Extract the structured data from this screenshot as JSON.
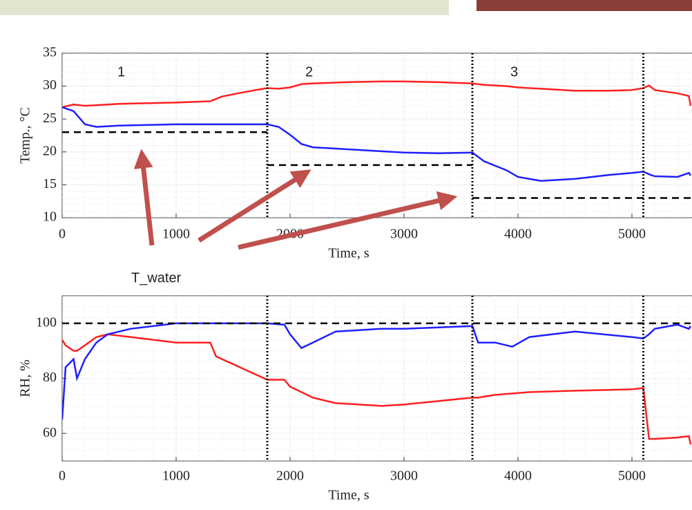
{
  "chart_data": [
    {
      "type": "line",
      "xlabel": "Time, s",
      "ylabel": "Temp., °C",
      "xlim": [
        0,
        5515
      ],
      "ylim": [
        10,
        35
      ],
      "xticks": [
        0,
        1000,
        2000,
        3000,
        4000,
        5000
      ],
      "yticks": [
        10,
        15,
        20,
        25,
        30,
        35
      ],
      "grid": true,
      "region_labels": [
        "1",
        "2",
        "3"
      ],
      "annotation": "T_water",
      "vlines": [
        1800,
        3600,
        5100
      ],
      "reference_lines": [
        {
          "y": 23,
          "x": [
            0,
            1800
          ]
        },
        {
          "y": 18,
          "x": [
            1800,
            3600
          ]
        },
        {
          "y": 13,
          "x": [
            3600,
            5515
          ]
        }
      ],
      "x": [
        0,
        100,
        200,
        300,
        500,
        1000,
        1300,
        1400,
        1600,
        1800,
        1900,
        2000,
        2100,
        2200,
        2500,
        2800,
        3000,
        3300,
        3600,
        3700,
        3900,
        4000,
        4200,
        4500,
        4800,
        5000,
        5100,
        5150,
        5200,
        5400,
        5500,
        5515
      ],
      "series": [
        {
          "color": "#ff1f1f",
          "values": [
            26.8,
            27.2,
            27.0,
            27.1,
            27.3,
            27.5,
            27.7,
            28.4,
            29.1,
            29.7,
            29.6,
            29.8,
            30.3,
            30.4,
            30.6,
            30.7,
            30.7,
            30.6,
            30.4,
            30.2,
            30.0,
            29.8,
            29.6,
            29.3,
            29.3,
            29.4,
            29.7,
            30.1,
            29.4,
            28.9,
            28.5,
            27.0
          ]
        },
        {
          "color": "#1f1fff",
          "values": [
            26.8,
            26.2,
            24.2,
            23.8,
            24.0,
            24.2,
            24.2,
            24.2,
            24.2,
            24.2,
            23.8,
            22.6,
            21.2,
            20.7,
            20.4,
            20.1,
            19.9,
            19.8,
            19.9,
            18.6,
            17.2,
            16.2,
            15.6,
            15.9,
            16.5,
            16.8,
            17.0,
            16.6,
            16.3,
            16.2,
            16.8,
            16.4
          ]
        }
      ]
    },
    {
      "type": "line",
      "xlabel": "Time, s",
      "ylabel": "RH, %",
      "xlim": [
        0,
        5515
      ],
      "ylim": [
        50,
        110
      ],
      "xticks": [
        0,
        1000,
        2000,
        3000,
        4000,
        5000
      ],
      "yticks": [
        60,
        80,
        100
      ],
      "grid": true,
      "vlines": [
        1800,
        3600,
        5100
      ],
      "reference_lines": [
        {
          "y": 100,
          "x": [
            0,
            5515
          ]
        }
      ],
      "x": [
        0,
        30,
        100,
        130,
        200,
        300,
        400,
        600,
        1000,
        1300,
        1350,
        1800,
        1950,
        2000,
        2100,
        2200,
        2400,
        2800,
        3000,
        3600,
        3650,
        3800,
        3950,
        4100,
        4500,
        5000,
        5100,
        5150,
        5200,
        5400,
        5500,
        5515
      ],
      "series": [
        {
          "color": "#ff1f1f",
          "values": [
            94,
            92,
            90,
            90,
            92,
            95,
            96,
            95,
            93,
            93,
            88,
            79.5,
            79.5,
            77,
            75,
            73,
            71,
            70,
            70.5,
            73,
            73,
            74,
            74.5,
            75,
            75.5,
            76,
            76.5,
            58,
            58,
            58.5,
            59,
            56
          ]
        },
        {
          "color": "#1f1fff",
          "values": [
            65,
            84,
            87,
            80,
            87,
            93,
            96,
            98,
            100,
            100,
            100,
            100,
            99.5,
            96,
            91,
            93,
            97,
            98,
            98,
            99,
            93,
            93,
            91.5,
            95,
            97,
            95,
            94.5,
            96,
            98,
            99.5,
            98,
            99
          ]
        }
      ]
    }
  ]
}
